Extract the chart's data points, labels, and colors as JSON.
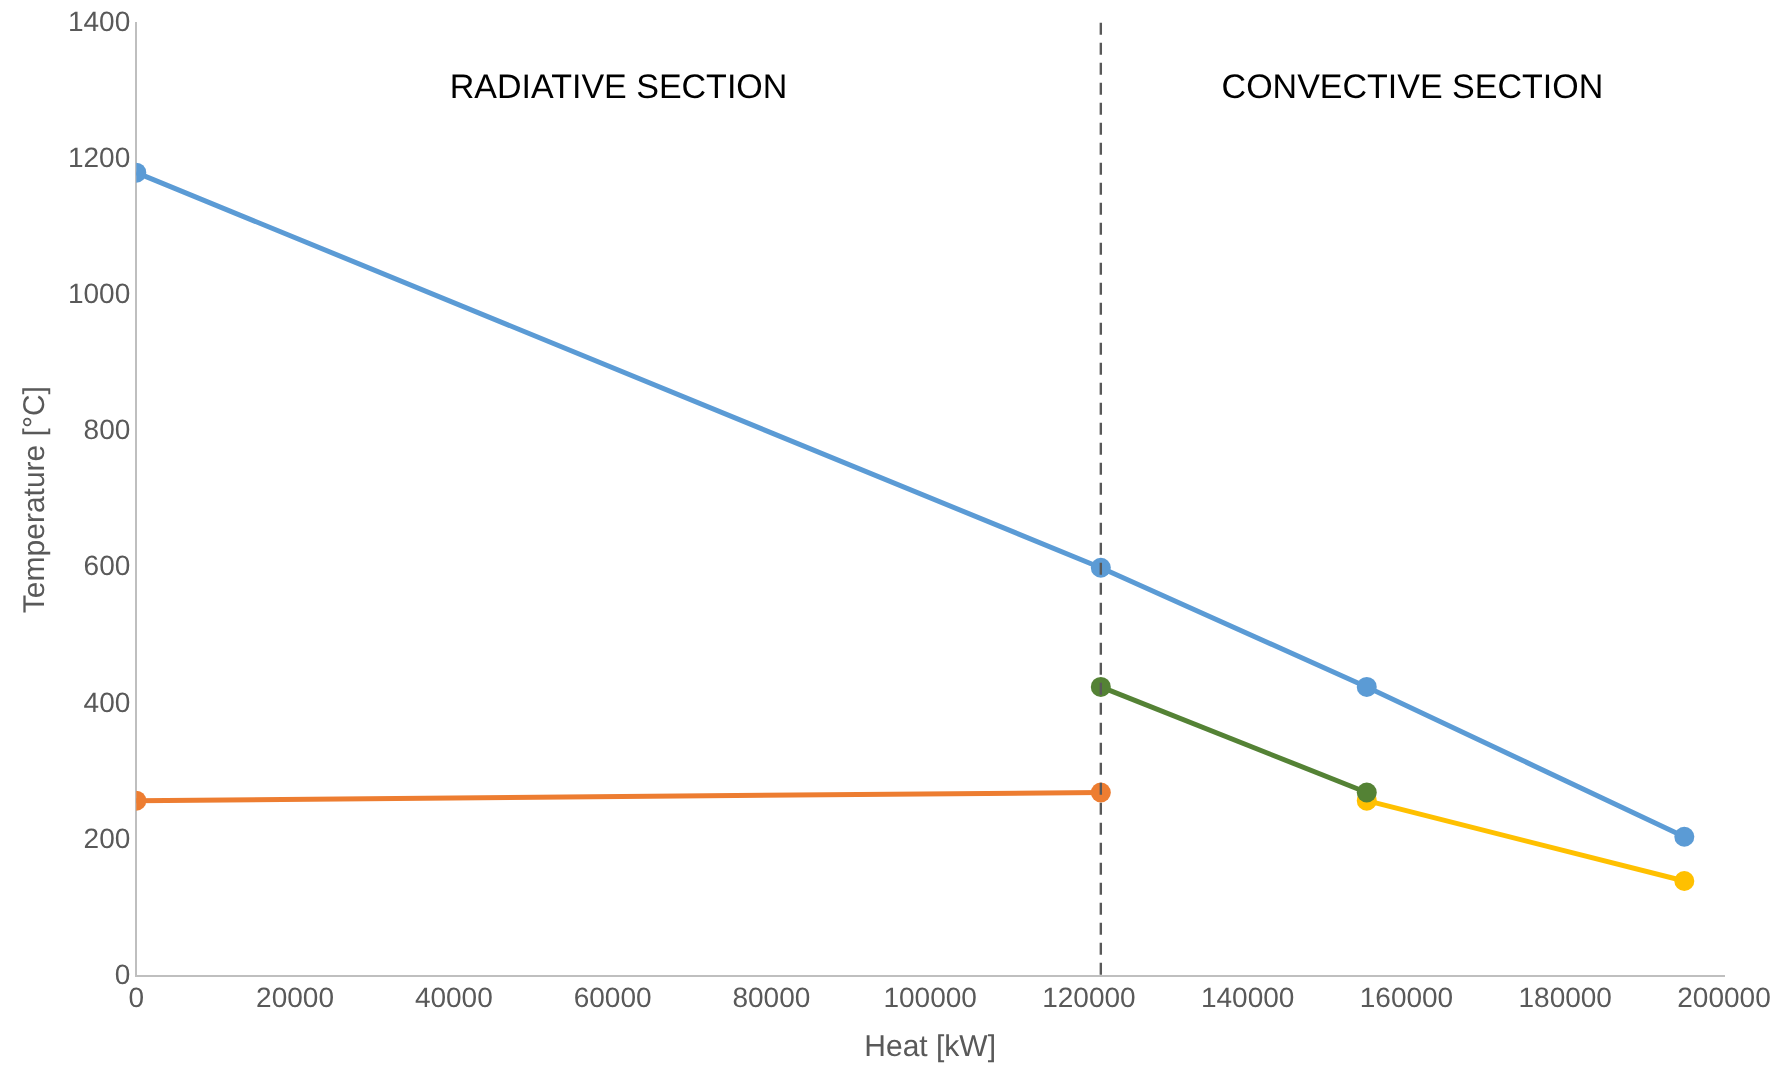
{
  "chart_data": {
    "type": "line",
    "xlabel": "Heat [kW]",
    "ylabel": "Temperature [°C]",
    "xlim": [
      0,
      200000
    ],
    "xticks": [
      0,
      20000,
      40000,
      60000,
      80000,
      100000,
      120000,
      140000,
      160000,
      180000,
      200000
    ],
    "ylim": [
      0,
      1400
    ],
    "yticks": [
      0,
      200,
      400,
      600,
      800,
      1000,
      1200,
      1400
    ],
    "series": [
      {
        "color": "#5b9bd5",
        "x": [
          0,
          121500,
          155000,
          195000
        ],
        "values": [
          1180,
          600,
          425,
          205
        ]
      },
      {
        "color": "#ed7d31",
        "x": [
          0,
          121500
        ],
        "values": [
          258,
          270
        ]
      },
      {
        "color": "#548235",
        "x": [
          121500,
          155000
        ],
        "values": [
          425,
          270
        ]
      },
      {
        "color": "#ffc000",
        "x": [
          155000,
          195000
        ],
        "values": [
          258,
          140
        ]
      }
    ],
    "ref_lines": [
      {
        "axis": "x",
        "value": 121500,
        "color": "#595959",
        "line_style": "dashed"
      }
    ],
    "annotations": [
      "RADIATIVE SECTION",
      "CONVECTIVE SECTION"
    ],
    "grid": false,
    "legend": false,
    "marker": "circle",
    "line_style": "solid"
  }
}
